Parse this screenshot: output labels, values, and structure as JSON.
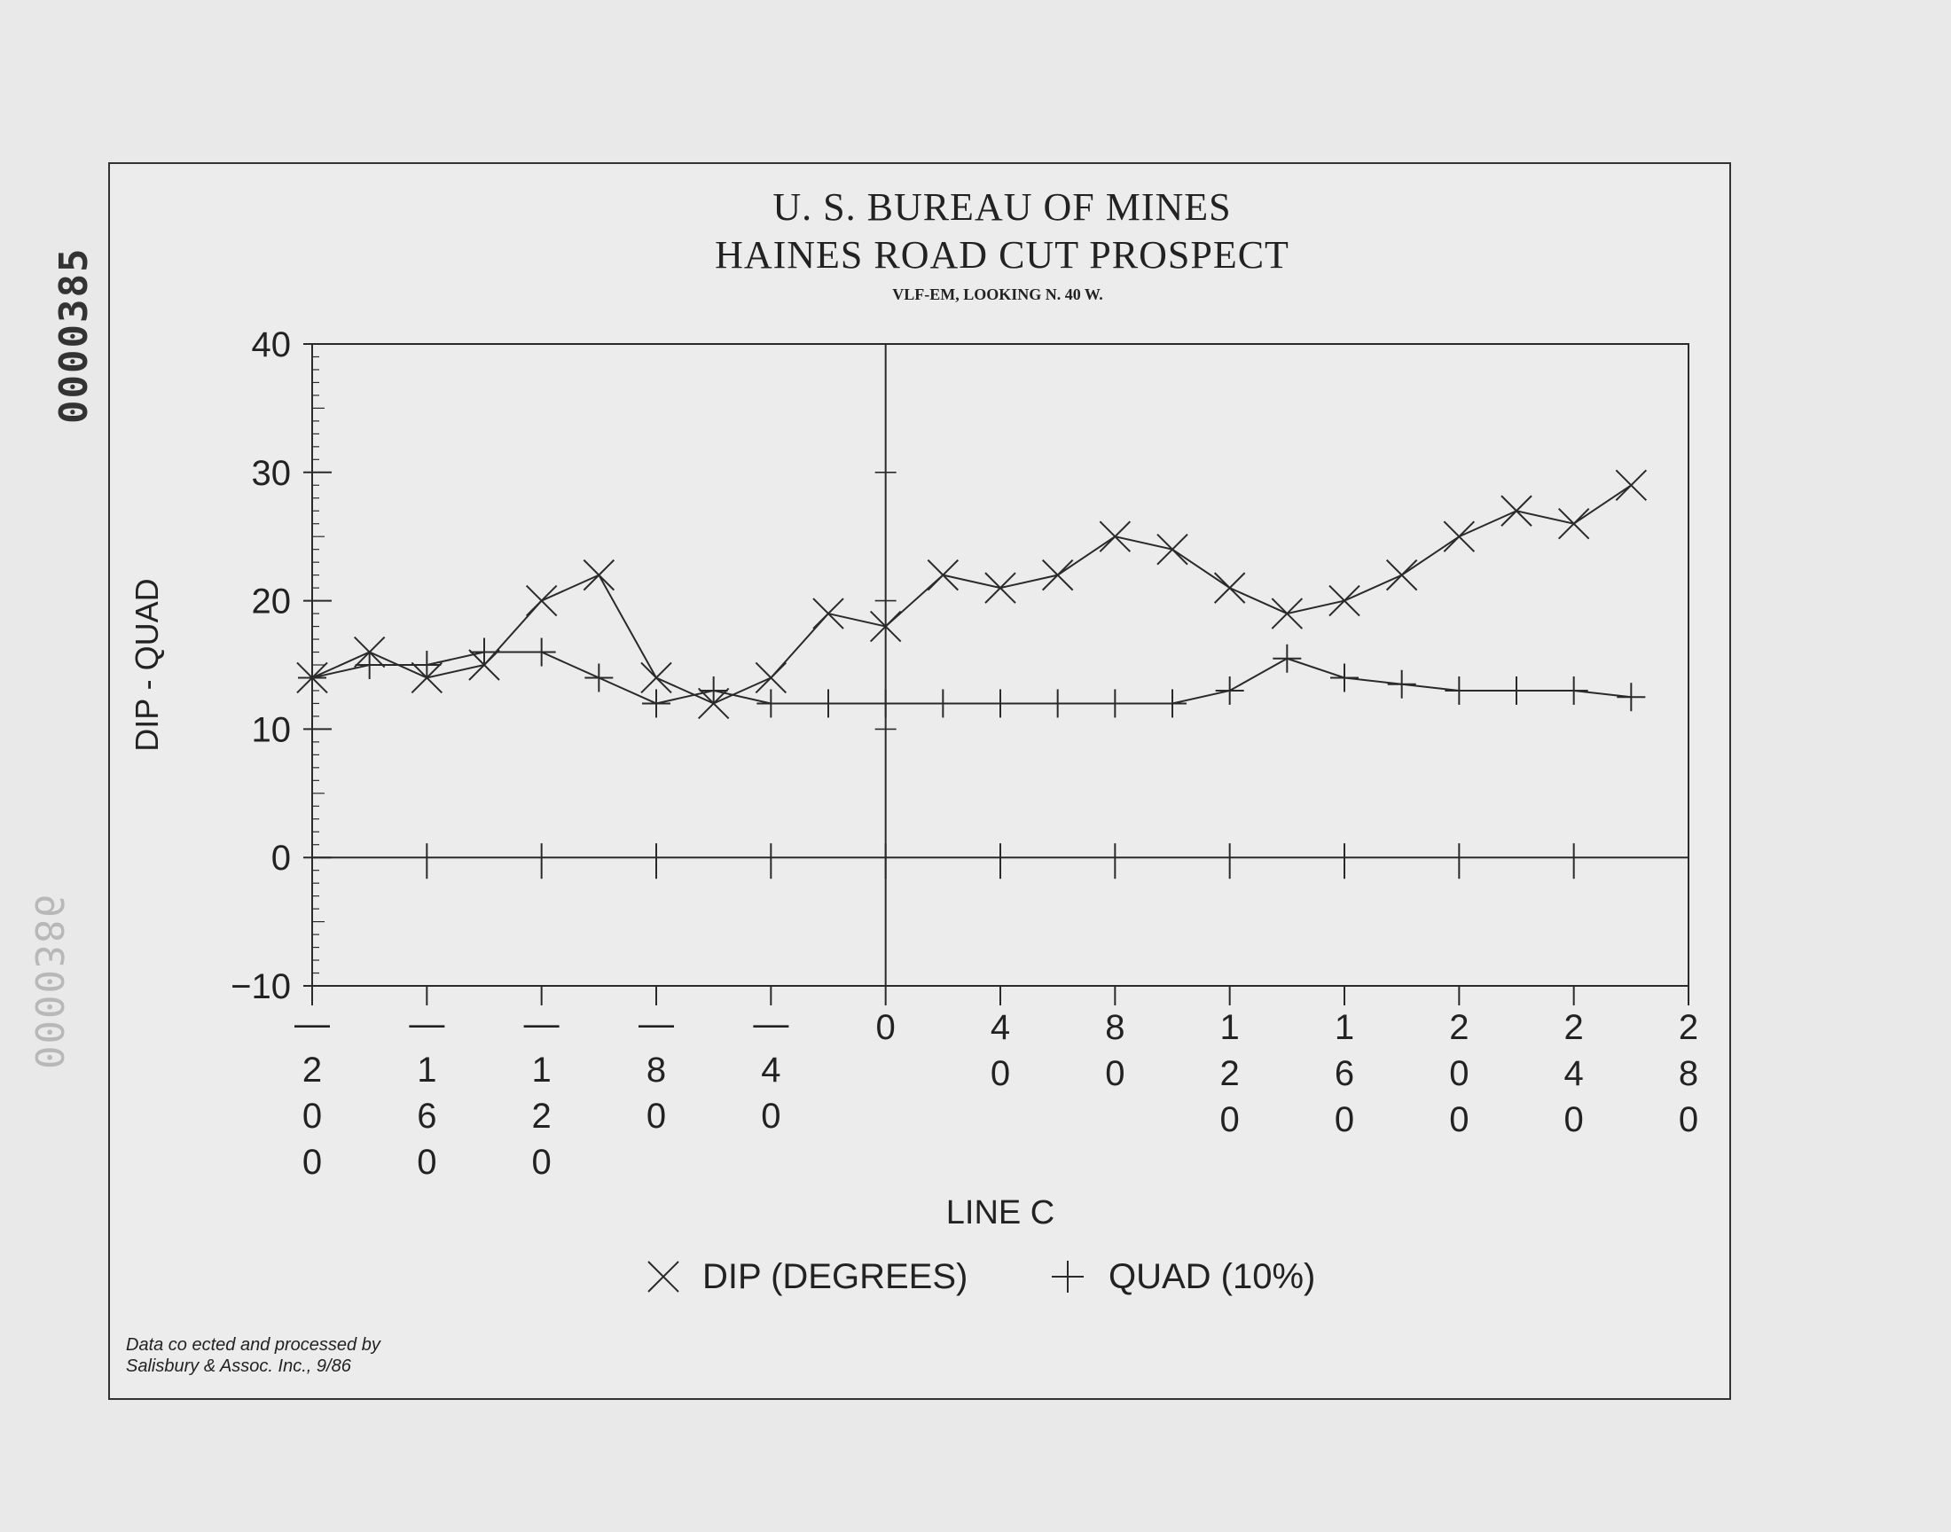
{
  "page_stamps": {
    "id_number": "0000385",
    "mirrored_id": "0000386"
  },
  "credit": {
    "line1": "Data co ected and processed by",
    "line2": "Salisbury & Assoc. Inc., 9/86"
  },
  "chart_data": {
    "type": "line",
    "title": "U. S. BUREAU OF MINES",
    "subtitle": "HAINES ROAD CUT PROSPECT",
    "subtitle2": "VLF-EM, LOOKING N. 40 W.",
    "xlabel": "LINE C",
    "ylabel": "DIP - QUAD",
    "xlim": [
      -200,
      280
    ],
    "ylim": [
      -10,
      40
    ],
    "x_ticks": [
      -200,
      -160,
      -120,
      -80,
      -40,
      0,
      40,
      80,
      120,
      160,
      200,
      240,
      280
    ],
    "y_ticks": [
      40,
      30,
      20,
      10,
      0,
      -10
    ],
    "y_tick_labels": [
      "40",
      "30",
      "20",
      "10",
      "0",
      "−10"
    ],
    "grid": false,
    "legend_position": "bottom-center",
    "series": [
      {
        "name": "DIP (DEGREES)",
        "marker": "x",
        "x": [
          -200,
          -180,
          -160,
          -140,
          -120,
          -100,
          -80,
          -60,
          -40,
          -20,
          0,
          20,
          40,
          60,
          80,
          100,
          120,
          140,
          160,
          180,
          200,
          220,
          240,
          260
        ],
        "y": [
          14,
          16,
          14,
          15,
          20,
          22,
          14,
          12,
          14,
          19,
          18,
          22,
          21,
          22,
          25,
          24,
          21,
          19,
          20,
          22,
          25,
          27,
          26,
          29
        ]
      },
      {
        "name": "QUAD (10%)",
        "marker": "+",
        "x": [
          -200,
          -180,
          -160,
          -140,
          -120,
          -100,
          -80,
          -60,
          -40,
          -20,
          0,
          20,
          40,
          60,
          80,
          100,
          120,
          140,
          160,
          180,
          200,
          220,
          240,
          260
        ],
        "y": [
          14,
          15,
          15,
          16,
          16,
          14,
          12,
          13,
          12,
          12,
          12,
          12,
          12,
          12,
          12,
          12,
          13,
          15.5,
          14,
          13.5,
          13,
          13,
          13,
          12.5
        ]
      }
    ]
  }
}
